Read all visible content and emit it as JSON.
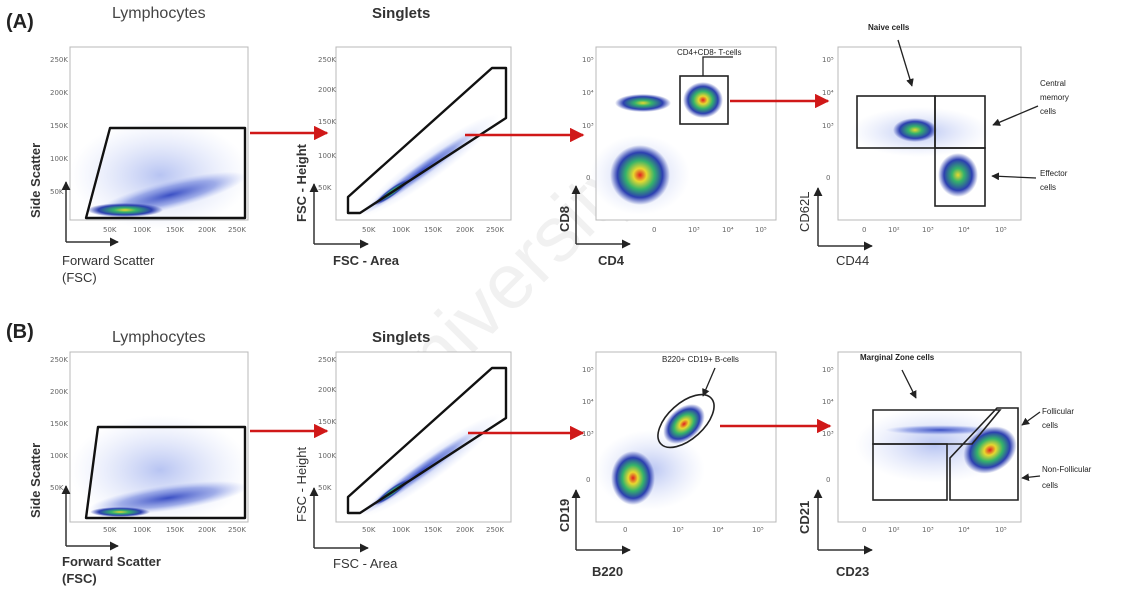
{
  "panels": {
    "A": {
      "letter": "(A)",
      "plot1": {
        "title": "Lymphocytes",
        "xlabel_line1": "Forward Scatter",
        "xlabel_line2": "(FSC)",
        "ylabel": "Side Scatter",
        "yticks": [
          "250K",
          "200K",
          "150K",
          "100K",
          "50K",
          "0"
        ],
        "xticks": [
          "50K",
          "100K",
          "150K",
          "200K",
          "250K"
        ]
      },
      "plot2": {
        "title": "Singlets",
        "xlabel": "FSC - Area",
        "ylabel": "FSC - Height",
        "yticks": [
          "250K",
          "200K",
          "150K",
          "100K",
          "50K",
          "0"
        ],
        "xticks": [
          "50K",
          "100K",
          "150K",
          "200K",
          "250K"
        ]
      },
      "plot3": {
        "gate_label": "CD4+CD8- T-cells",
        "xlabel": "CD4",
        "ylabel": "CD8",
        "yticks": [
          "10⁵",
          "10⁴",
          "10³",
          "0"
        ],
        "xticks": [
          "0",
          "10³",
          "10⁴",
          "10⁵"
        ]
      },
      "plot4": {
        "xlabel": "CD44",
        "ylabel": "CD62L",
        "yticks": [
          "10⁵",
          "10⁴",
          "10³",
          "0"
        ],
        "xticks": [
          "0",
          "10²",
          "10³",
          "10⁴",
          "10⁵"
        ],
        "ann_naive": "Naive cells",
        "ann_central_1": "Central",
        "ann_central_2": "memory",
        "ann_central_3": "cells",
        "ann_effector_1": "Effector",
        "ann_effector_2": "cells"
      }
    },
    "B": {
      "letter": "(B)",
      "plot1": {
        "title": "Lymphocytes",
        "xlabel_line1": "Forward Scatter",
        "xlabel_line2": "(FSC)",
        "ylabel": "Side Scatter",
        "yticks": [
          "250K",
          "200K",
          "150K",
          "100K",
          "50K",
          "0"
        ],
        "xticks": [
          "50K",
          "100K",
          "150K",
          "200K",
          "250K"
        ]
      },
      "plot2": {
        "title": "Singlets",
        "xlabel": "FSC - Area",
        "ylabel": "FSC - Height",
        "yticks": [
          "250K",
          "200K",
          "150K",
          "100K",
          "50K",
          "0"
        ],
        "xticks": [
          "50K",
          "100K",
          "150K",
          "200K",
          "250K"
        ]
      },
      "plot3": {
        "gate_label": "B220+ CD19+ B-cells",
        "xlabel": "B220",
        "ylabel": "CD19",
        "yticks": [
          "10⁵",
          "10⁴",
          "10³",
          "0"
        ],
        "xticks": [
          "0",
          "10³",
          "10⁴",
          "10⁵"
        ]
      },
      "plot4": {
        "xlabel": "CD23",
        "ylabel": "CD21",
        "yticks": [
          "10⁵",
          "10⁴",
          "10³",
          "0"
        ],
        "xticks": [
          "0",
          "10²",
          "10³",
          "10⁴",
          "10⁵"
        ],
        "ann_marginal": "Marginal Zone cells",
        "ann_follicular_1": "Follicular",
        "ann_follicular_2": "cells",
        "ann_nonfollicular_1": "Non-Follicular",
        "ann_nonfollicular_2": "cells"
      }
    }
  },
  "watermark": "University of",
  "colors": {
    "arrow": "#d01818",
    "gate": "#111111",
    "density_low": "#2c3fb0",
    "density_mid": "#35b36a",
    "density_high": "#e8d830",
    "density_peak": "#e02020"
  }
}
